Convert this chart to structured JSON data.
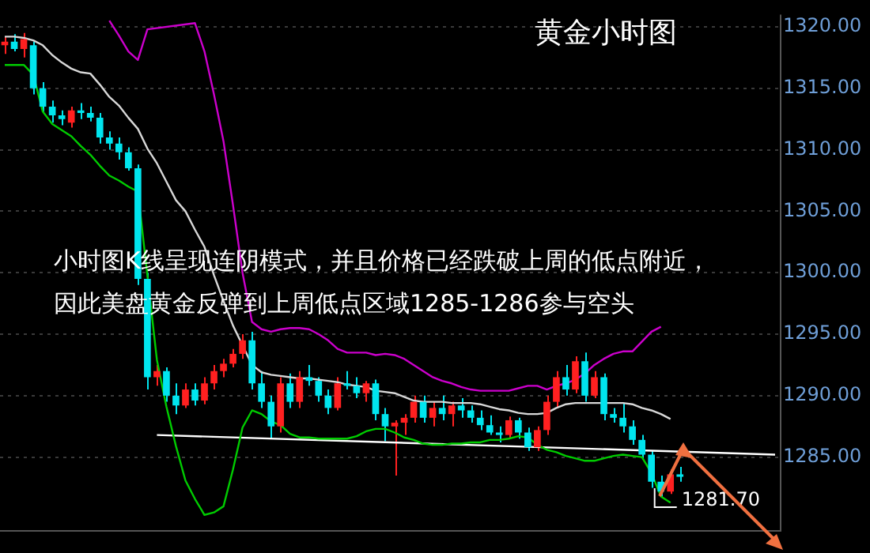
{
  "chart_data": {
    "type": "candlestick",
    "title": "黄金小时图",
    "annotations": [
      "小时图K线呈现连阴模式，并且价格已经跌破上周的低点附近，",
      "因此美盘黄金反弹到上周低点区域1285-1286参与空头",
      "1281.70"
    ],
    "categories": [
      null,
      null,
      null,
      null,
      null,
      null,
      null,
      null,
      null,
      null,
      null,
      null,
      null,
      null,
      null,
      null,
      null,
      null,
      null,
      null,
      null,
      null,
      null,
      null,
      null,
      null,
      null,
      null,
      null,
      null,
      null,
      null,
      null,
      null,
      null,
      null,
      null,
      null,
      null,
      null,
      null,
      null,
      null,
      null,
      null,
      null,
      null,
      null,
      null,
      null,
      null,
      null,
      null,
      null,
      null,
      null,
      null,
      null,
      null,
      null,
      null,
      null,
      null,
      null,
      null,
      null,
      null,
      null,
      null,
      null,
      null,
      null,
      null,
      null,
      null,
      null,
      null,
      null,
      null,
      null,
      null,
      null
    ],
    "ohlc": [
      [
        1318.5,
        1319.2,
        1317.8,
        1318.8
      ],
      [
        1318.8,
        1319.4,
        1318,
        1318.2
      ],
      [
        1318.2,
        1319.5,
        1317.5,
        1319.0
      ],
      [
        1318.5,
        1318.8,
        1314.5,
        1315.0
      ],
      [
        1315,
        1315.5,
        1313,
        1313.5
      ],
      [
        1313.5,
        1314,
        1312.2,
        1312.8
      ],
      [
        1312.8,
        1313.2,
        1312,
        1312.5
      ],
      [
        1312.2,
        1313.5,
        1311.8,
        1313.2
      ],
      [
        1313.2,
        1313.8,
        1312.5,
        1313
      ],
      [
        1313,
        1313.5,
        1312.3,
        1312.6
      ],
      [
        1312.6,
        1313,
        1310.5,
        1311
      ],
      [
        1311,
        1311.5,
        1310,
        1310.5
      ],
      [
        1310.5,
        1311,
        1309.2,
        1309.8
      ],
      [
        1309.8,
        1310.2,
        1308.3,
        1308.5
      ],
      [
        1308.5,
        1308.8,
        1299,
        1299.5
      ],
      [
        1299.5,
        1300,
        1290.5,
        1291.5
      ],
      [
        1291.5,
        1292.5,
        1290.8,
        1292
      ],
      [
        1292,
        1292.3,
        1289.5,
        1290
      ],
      [
        1290,
        1291,
        1288.5,
        1289.2
      ],
      [
        1289.2,
        1291,
        1289,
        1290.5
      ],
      [
        1290.5,
        1291,
        1289.2,
        1289.6
      ],
      [
        1289.6,
        1291.5,
        1289.3,
        1291
      ],
      [
        1291,
        1292.5,
        1290.5,
        1292
      ],
      [
        1292,
        1293,
        1291.5,
        1292.6
      ],
      [
        1292.6,
        1293.8,
        1292.3,
        1293.4
      ],
      [
        1293.4,
        1295,
        1293,
        1294.5
      ],
      [
        1294.5,
        1295.2,
        1290.5,
        1291
      ],
      [
        1291,
        1292,
        1289,
        1289.5
      ],
      [
        1289.5,
        1290,
        1286.5,
        1287.5
      ],
      [
        1287.5,
        1291.5,
        1287,
        1291
      ],
      [
        1291,
        1291.8,
        1289,
        1289.5
      ],
      [
        1289.5,
        1292,
        1289,
        1291.5
      ],
      [
        1291.5,
        1292.5,
        1290.8,
        1291.2
      ],
      [
        1291.2,
        1291.5,
        1289.5,
        1290
      ],
      [
        1290,
        1290.5,
        1288.5,
        1289
      ],
      [
        1289,
        1291.5,
        1288.8,
        1291
      ],
      [
        1291,
        1292,
        1290.5,
        1290.8
      ],
      [
        1290.8,
        1291.5,
        1289.8,
        1290.2
      ],
      [
        1290.2,
        1291.2,
        1289.5,
        1291
      ],
      [
        1291,
        1291.3,
        1288,
        1288.5
      ],
      [
        1288.5,
        1289,
        1286.3,
        1287.5
      ],
      [
        1287.5,
        1288,
        1283.5,
        1287.8
      ],
      [
        1287.8,
        1288.5,
        1286.8,
        1288.2
      ],
      [
        1288.2,
        1290,
        1287.8,
        1289.5
      ],
      [
        1289.5,
        1290,
        1287.8,
        1288.2
      ],
      [
        1288.2,
        1289.5,
        1287.5,
        1289
      ],
      [
        1289,
        1290,
        1288,
        1288.5
      ],
      [
        1288.5,
        1289.5,
        1287.5,
        1289.2
      ],
      [
        1289.2,
        1289.8,
        1288.2,
        1288.8
      ],
      [
        1288.8,
        1289.2,
        1287.8,
        1288.2
      ],
      [
        1288.2,
        1288.8,
        1287.2,
        1287.6
      ],
      [
        1287.6,
        1288.4,
        1286.8,
        1287
      ],
      [
        1287,
        1287.5,
        1286.2,
        1286.8
      ],
      [
        1286.8,
        1288.3,
        1286.5,
        1288
      ],
      [
        1288,
        1288.2,
        1286.5,
        1287
      ],
      [
        1287,
        1287.4,
        1285.5,
        1285.8
      ],
      [
        1285.8,
        1287.5,
        1285.5,
        1287.2
      ],
      [
        1287.2,
        1290,
        1286.8,
        1289.5
      ],
      [
        1289.5,
        1292,
        1289,
        1291.5
      ],
      [
        1291.5,
        1292.5,
        1290,
        1290.5
      ],
      [
        1290.5,
        1293.2,
        1290.2,
        1292.8
      ],
      [
        1292.8,
        1293.5,
        1289.5,
        1290
      ],
      [
        1290,
        1292,
        1289.8,
        1291.5
      ],
      [
        1291.5,
        1291.8,
        1288,
        1288.5
      ],
      [
        1288.5,
        1289,
        1287.8,
        1288.2
      ],
      [
        1288.2,
        1289.4,
        1287,
        1287.5
      ],
      [
        1287.5,
        1288,
        1286,
        1286.4
      ],
      [
        1286.4,
        1286.8,
        1284.8,
        1285.2
      ],
      [
        1285.2,
        1285.5,
        1282.5,
        1283
      ],
      [
        1283,
        1283.5,
        1281.7,
        1282.2
      ],
      [
        1282.2,
        1284,
        1282,
        1283.6
      ],
      [
        1283.6,
        1284.2,
        1283,
        1283.4
      ],
      null,
      null,
      null,
      null,
      null,
      null,
      null,
      null,
      null,
      null
    ],
    "colors": [
      "#ff2020",
      "#00e5ee",
      "#ff2020",
      "#00e5ee",
      "#00e5ee",
      "#00e5ee",
      "#00e5ee",
      "#ff2020",
      "#00e5ee",
      "#00e5ee",
      "#00e5ee",
      "#00e5ee",
      "#00e5ee",
      "#00e5ee",
      "#00e5ee",
      "#00e5ee",
      "#ff2020",
      "#00e5ee",
      "#00e5ee",
      "#ff2020",
      "#00e5ee",
      "#ff2020",
      "#ff2020",
      "#ff2020",
      "#ff2020",
      "#ff2020",
      "#00e5ee",
      "#00e5ee",
      "#00e5ee",
      "#ff2020",
      "#00e5ee",
      "#ff2020",
      "#00e5ee",
      "#00e5ee",
      "#00e5ee",
      "#ff2020",
      "#00e5ee",
      "#00e5ee",
      "#ff2020",
      "#00e5ee",
      "#00e5ee",
      "#ff2020",
      "#ff2020",
      "#ff2020",
      "#00e5ee",
      "#ff2020",
      "#00e5ee",
      "#ff2020",
      "#00e5ee",
      "#00e5ee",
      "#00e5ee",
      "#00e5ee",
      "#00e5ee",
      "#ff2020",
      "#00e5ee",
      "#00e5ee",
      "#ff2020",
      "#ff2020",
      "#ff2020",
      "#00e5ee",
      "#ff2020",
      "#00e5ee",
      "#ff2020",
      "#00e5ee",
      "#00e5ee",
      "#00e5ee",
      "#00e5ee",
      "#00e5ee",
      "#00e5ee",
      "#00e5ee",
      "#ff2020",
      "#00e5ee",
      null,
      null,
      null,
      null,
      null,
      null,
      null,
      null,
      null,
      null
    ],
    "series": [
      {
        "type": "line",
        "color": "#cc00cc",
        "values": [
          null,
          null,
          null,
          null,
          null,
          null,
          null,
          null,
          null,
          null,
          null,
          1320.5,
          1319.3,
          1318,
          1317.3,
          1319.8,
          null,
          null,
          null,
          null,
          1320.3,
          1318,
          1314.5,
          1310.7,
          1305.5,
          1300,
          1296.0,
          1295.4,
          1295.2,
          1295.4,
          1295.5,
          1295.5,
          1295.4,
          1295,
          1294.5,
          1293.8,
          1293.5,
          1293.5,
          1293.5,
          1293.3,
          1293.4,
          1293.3,
          1293,
          1292.5,
          1292,
          1291.5,
          1291.2,
          1291,
          1290.7,
          1290.5,
          1290.4,
          1290.4,
          1290.4,
          1290.4,
          1290.6,
          1290.8,
          1290.8,
          1290.5,
          1290.8,
          1291,
          1291.3,
          1291.8,
          1292.5,
          1293,
          1293.4,
          1293.6,
          1293.6,
          1294.4,
          1295.2,
          1295.6,
          null,
          null,
          null,
          null,
          null,
          null,
          null,
          null,
          null,
          null,
          null,
          null
        ]
      },
      {
        "type": "line",
        "color": "#d8d8d8",
        "values": [
          1319.2,
          1319.2,
          1319.1,
          1318.9,
          1318.5,
          1317.7,
          1317.1,
          1316.6,
          1316.3,
          1316.2,
          1315.3,
          1314.3,
          1313.6,
          1312.6,
          1311.7,
          1310.1,
          1308.9,
          1307.4,
          1305.9,
          1305,
          1303.5,
          1302.1,
          1299.8,
          1297.7,
          1295.7,
          1294.1,
          1292.5,
          1291.9,
          1291.7,
          1291.6,
          1291.5,
          1291.4,
          1291.4,
          1291.3,
          1291.2,
          1291.1,
          1290.9,
          1290.8,
          1290.7,
          1290.4,
          1290.3,
          1290.2,
          1289.9,
          1289.6,
          1289.5,
          1289.5,
          1289.5,
          1289.4,
          1289.4,
          1289.4,
          1289.3,
          1289.1,
          1288.9,
          1288.8,
          1288.6,
          1288.5,
          1288.5,
          1288.6,
          1289,
          1289.3,
          1289.4,
          1289.4,
          1289.4,
          1289.4,
          1289.4,
          1289.4,
          1289.3,
          1289,
          1288.8,
          1288.5,
          1288.1,
          null,
          null,
          null,
          null,
          null,
          null,
          null,
          null,
          null,
          null,
          null
        ]
      },
      {
        "type": "line",
        "color": "#00cc00",
        "values": [
          1316.9,
          1316.9,
          1316.9,
          1316.1,
          1313.1,
          1312.1,
          1311.6,
          1311.1,
          1310.3,
          1309.6,
          1308.7,
          1307.9,
          1307.5,
          1307,
          1306.6,
          null,
          1292.9,
          1289.1,
          1285.9,
          1283.1,
          1281.6,
          1280.3,
          1280.5,
          1281,
          1284,
          1287.4,
          1288.8,
          1288.5,
          1287.9,
          1287.6,
          1286.9,
          1286.6,
          1286.6,
          1286.5,
          1286.5,
          1286.5,
          1286.5,
          1286.7,
          1287.1,
          1287.3,
          1287.3,
          1287,
          1286.6,
          1286.4,
          1286.1,
          1286,
          1286,
          1286.1,
          1286.1,
          1286.2,
          1286.2,
          1286.4,
          1286.4,
          1286.5,
          1286.7,
          1286.6,
          1286,
          1285.6,
          1285.4,
          1285.1,
          1284.9,
          1284.7,
          1284.7,
          1284.9,
          1285.1,
          1285.2,
          1285.1,
          1285,
          1283.7,
          1281.8,
          1281.3,
          null,
          null,
          null,
          null,
          null,
          null,
          null,
          null,
          null,
          null,
          null
        ]
      },
      {
        "type": "line",
        "color": "#ffffff",
        "values": [
          null,
          null,
          null,
          null,
          null,
          null,
          null,
          null,
          null,
          null,
          null,
          null,
          null,
          null,
          null,
          null,
          1286.8,
          null,
          null,
          null,
          null,
          null,
          null,
          null,
          null,
          null,
          null,
          null,
          null,
          null,
          null,
          null,
          null,
          null,
          null,
          null,
          null,
          null,
          null,
          null,
          null,
          null,
          null,
          null,
          null,
          null,
          null,
          null,
          null,
          null,
          null,
          null,
          null,
          null,
          null,
          null,
          null,
          null,
          null,
          null,
          null,
          null,
          null,
          null,
          null,
          null,
          null,
          null,
          null,
          null,
          null,
          null,
          null,
          null,
          null,
          null,
          null,
          null,
          null,
          null,
          null,
          1285.2
        ]
      }
    ],
    "ylim": [
      1279,
      1321
    ],
    "yticks": [
      {
        "value": 1285,
        "label": "1285.00"
      },
      {
        "value": 1290,
        "label": "1290.00"
      },
      {
        "value": 1295,
        "label": "1295.00"
      },
      {
        "value": 1300,
        "label": "1300.00"
      },
      {
        "value": 1305,
        "label": "1305.00"
      },
      {
        "value": 1310,
        "label": "1310.00"
      },
      {
        "value": 1315,
        "label": "1315.00"
      },
      {
        "value": 1320,
        "label": "1320.00"
      }
    ],
    "grid": "y",
    "legend": false,
    "marker": "none",
    "tick_labels": "y"
  }
}
